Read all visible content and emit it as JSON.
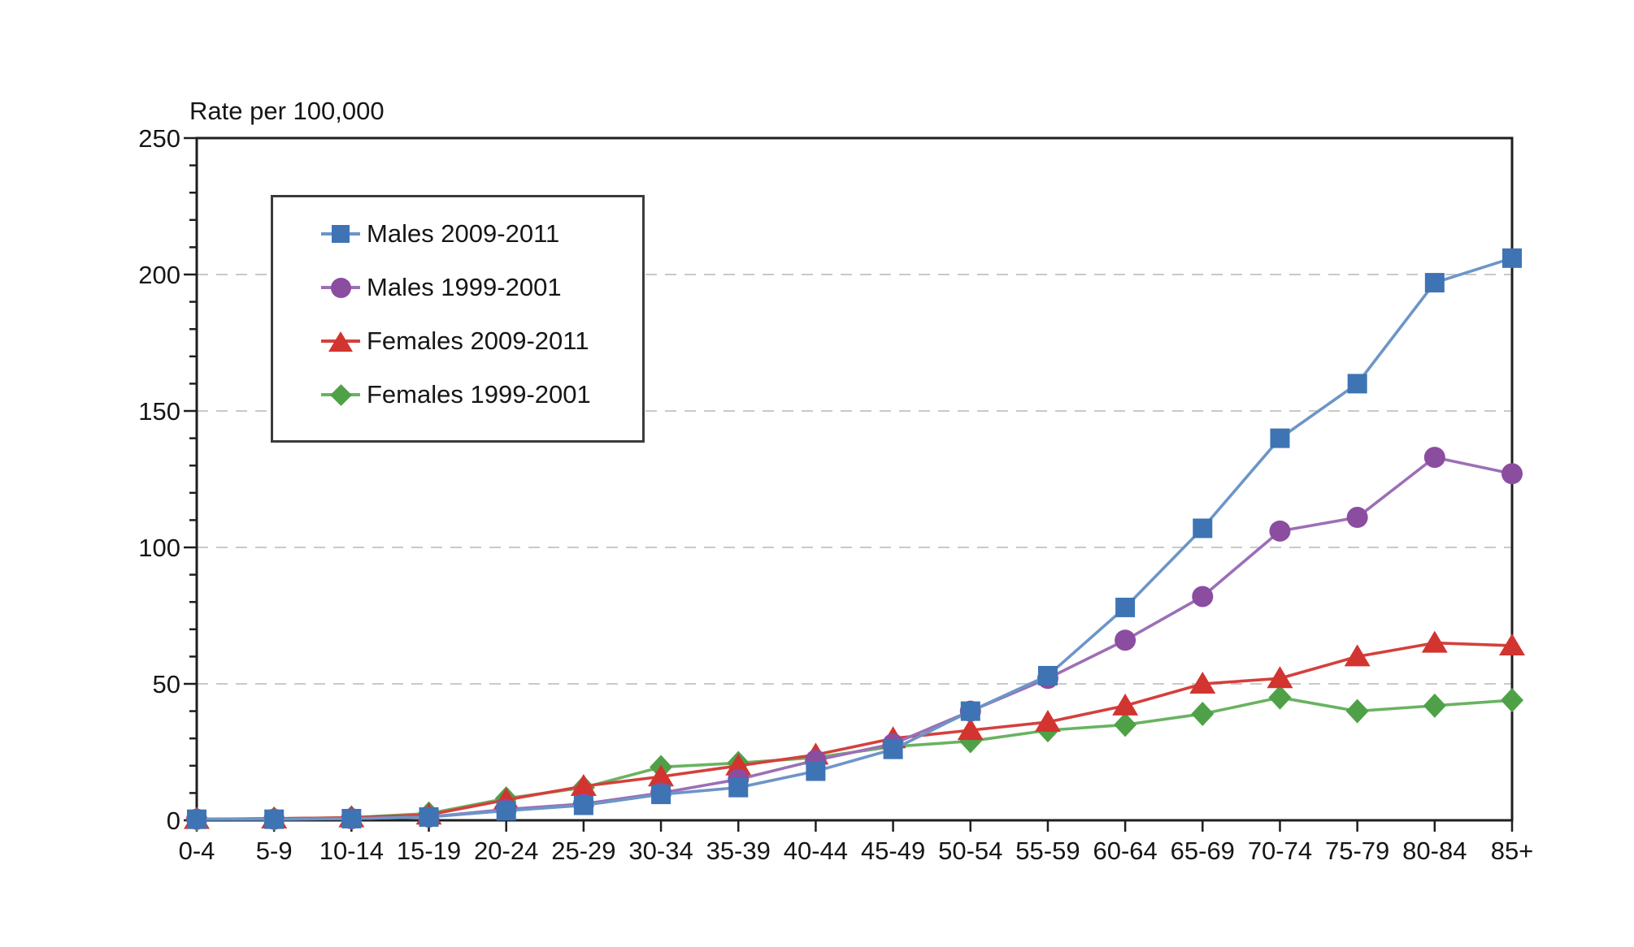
{
  "figure": {
    "background": "#ffffff"
  },
  "chart_data": {
    "type": "line",
    "title": "Rate per 100,000",
    "xlabel": "",
    "ylabel": "Rate per 100,000",
    "categories": [
      "0-4",
      "5-9",
      "10-14",
      "15-19",
      "20-24",
      "25-29",
      "30-34",
      "35-39",
      "40-44",
      "45-49",
      "50-54",
      "55-59",
      "60-64",
      "65-69",
      "70-74",
      "75-79",
      "80-84",
      "85+"
    ],
    "series": [
      {
        "name": "Males 2009-2011",
        "marker": "square",
        "color": "#3E74B4",
        "line_color": "#6C95C8",
        "values": [
          0.4,
          0.4,
          0.6,
          1.2,
          3.5,
          5.5,
          9.5,
          12,
          18,
          26,
          40,
          53,
          78,
          107,
          140,
          160,
          197,
          206
        ]
      },
      {
        "name": "Males 1999-2001",
        "marker": "circle",
        "color": "#8B4DA0",
        "line_color": "#9C6FB6",
        "values": [
          0.4,
          0.4,
          0.6,
          1.2,
          4,
          6,
          10,
          15,
          22,
          28,
          40,
          52,
          66,
          82,
          106,
          111,
          133,
          127
        ]
      },
      {
        "name": "Females 2009-2011",
        "marker": "triangle",
        "color": "#D23430",
        "line_color": "#D4403C",
        "values": [
          0.4,
          0.6,
          1,
          2,
          7.5,
          12.5,
          16,
          20,
          24,
          30,
          33,
          36,
          42,
          50,
          52,
          60,
          65,
          64
        ]
      },
      {
        "name": "Females 1999-2001",
        "marker": "diamond",
        "color": "#4FA147",
        "line_color": "#69B360",
        "values": [
          0.4,
          0.6,
          1,
          2.5,
          8,
          12,
          19.5,
          21,
          23,
          27,
          29,
          33,
          35,
          39,
          45,
          40,
          42,
          44
        ]
      }
    ],
    "ylim": [
      0,
      250
    ],
    "ytick_interval": 50,
    "yminor_tick_interval": 10,
    "ytick_labels": [
      "0",
      "50",
      "100",
      "150",
      "200",
      "250"
    ],
    "grid": "horizontal-dashed-at-major-ticks",
    "grid_color": "#C9C9C9",
    "axis_color": "#1E1E1E",
    "legend_position": "upper-left-inside",
    "legend_border_color": "#3B3B3B"
  }
}
